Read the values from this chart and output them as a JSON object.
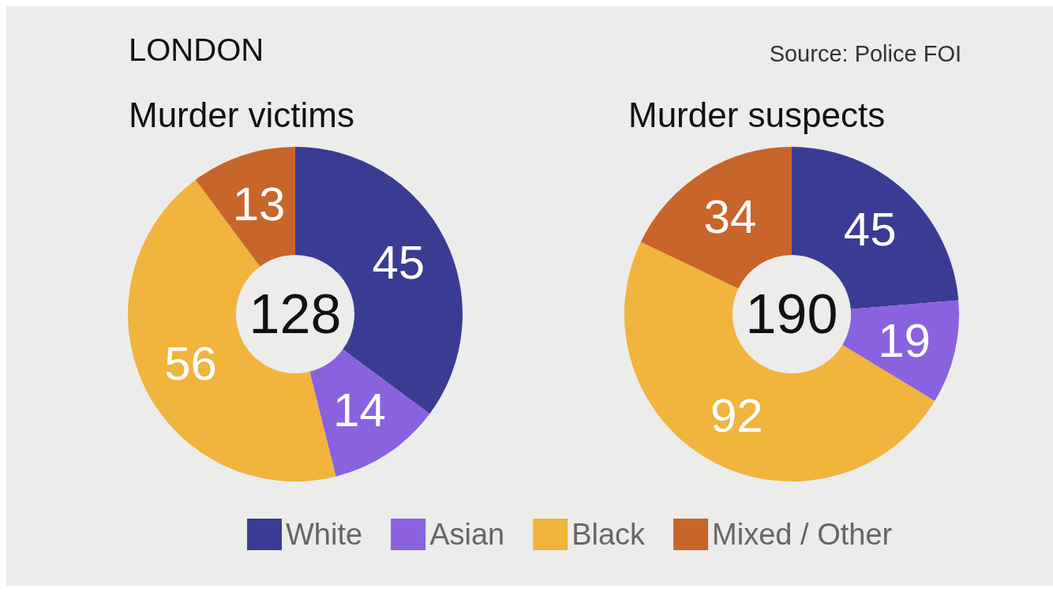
{
  "chart_data": {
    "type": "donut",
    "title": "LONDON",
    "annotations": [
      "Source: Police FOI",
      "128",
      "190"
    ],
    "categories": [
      "White",
      "Asian",
      "Black",
      "Mixed / Other"
    ],
    "colors": [
      "#3a3c94",
      "#8a62e0",
      "#f1b43d",
      "#c8652b"
    ],
    "data_labels": true,
    "legend": "bottom",
    "series": [
      {
        "name": "Murder victims",
        "values": [
          45,
          14,
          56,
          13
        ]
      },
      {
        "name": "Murder suspects",
        "values": [
          45,
          19,
          92,
          34
        ]
      }
    ]
  }
}
